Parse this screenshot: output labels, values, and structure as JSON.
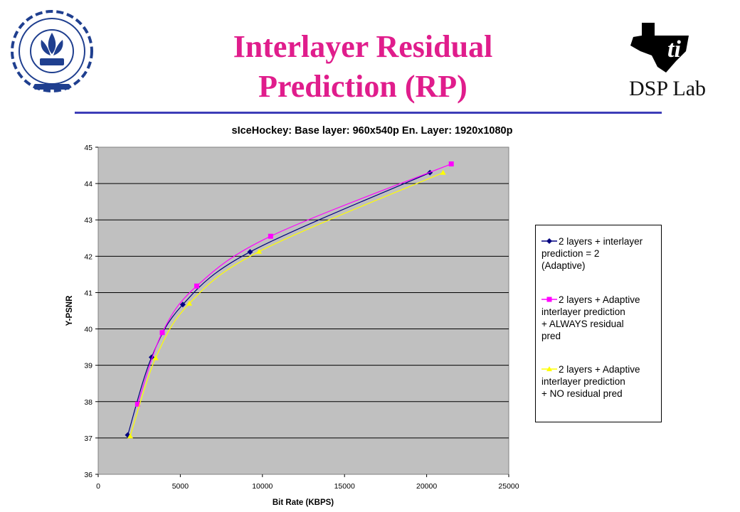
{
  "slide": {
    "title_line1": "Interlayer Residual",
    "title_line2": "Prediction (RP)",
    "lab_name": "DSP Lab",
    "left_logo": "iit-bombay-logo",
    "right_logo": "texas-instruments-logo"
  },
  "colors": {
    "title": "#e01d8c",
    "rule": "#3d3db8",
    "plot_bg": "#c0c0c0",
    "series": [
      "#000080",
      "#ff00ff",
      "#ffff00"
    ]
  },
  "chart_data": {
    "type": "line",
    "title": "sIceHockey: Base layer: 960x540p En. Layer: 1920x1080p",
    "xlabel": "Bit Rate (KBPS)",
    "ylabel": "Y-PSNR",
    "xlim": [
      0,
      25000
    ],
    "ylim": [
      36,
      45
    ],
    "xticks": [
      "0",
      "5000",
      "10000",
      "15000",
      "20000",
      "25000"
    ],
    "yticks": [
      "36",
      "37",
      "38",
      "39",
      "40",
      "41",
      "42",
      "43",
      "44",
      "45"
    ],
    "grid": "horizontal",
    "legend_position": "right",
    "series": [
      {
        "name": "2 layers + interlayer prediction = 2 (Adaptive)",
        "legend_lines": [
          "2 layers + interlayer",
          "prediction = 2",
          "(Adaptive)"
        ],
        "marker": "diamond",
        "x": [
          1800,
          3250,
          5150,
          9250,
          20200
        ],
        "y": [
          37.08,
          39.22,
          40.67,
          42.12,
          44.3
        ]
      },
      {
        "name": "2 layers + Adaptive interlayer prediction + ALWAYS residual pred",
        "legend_lines": [
          "2 layers + Adaptive",
          "interlayer prediction",
          "+ ALWAYS residual",
          "pred"
        ],
        "marker": "square",
        "x": [
          2400,
          3900,
          6000,
          10500,
          21500
        ],
        "y": [
          37.93,
          39.9,
          41.18,
          42.55,
          44.54
        ]
      },
      {
        "name": "2 layers + Adaptive interlayer prediction + NO residual pred",
        "legend_lines": [
          "2 layers + Adaptive",
          "interlayer prediction",
          "+ NO residual pred"
        ],
        "marker": "triangle",
        "x": [
          1950,
          3500,
          5550,
          9800,
          21000
        ],
        "y": [
          37.05,
          39.2,
          40.7,
          42.13,
          44.3
        ]
      }
    ]
  }
}
